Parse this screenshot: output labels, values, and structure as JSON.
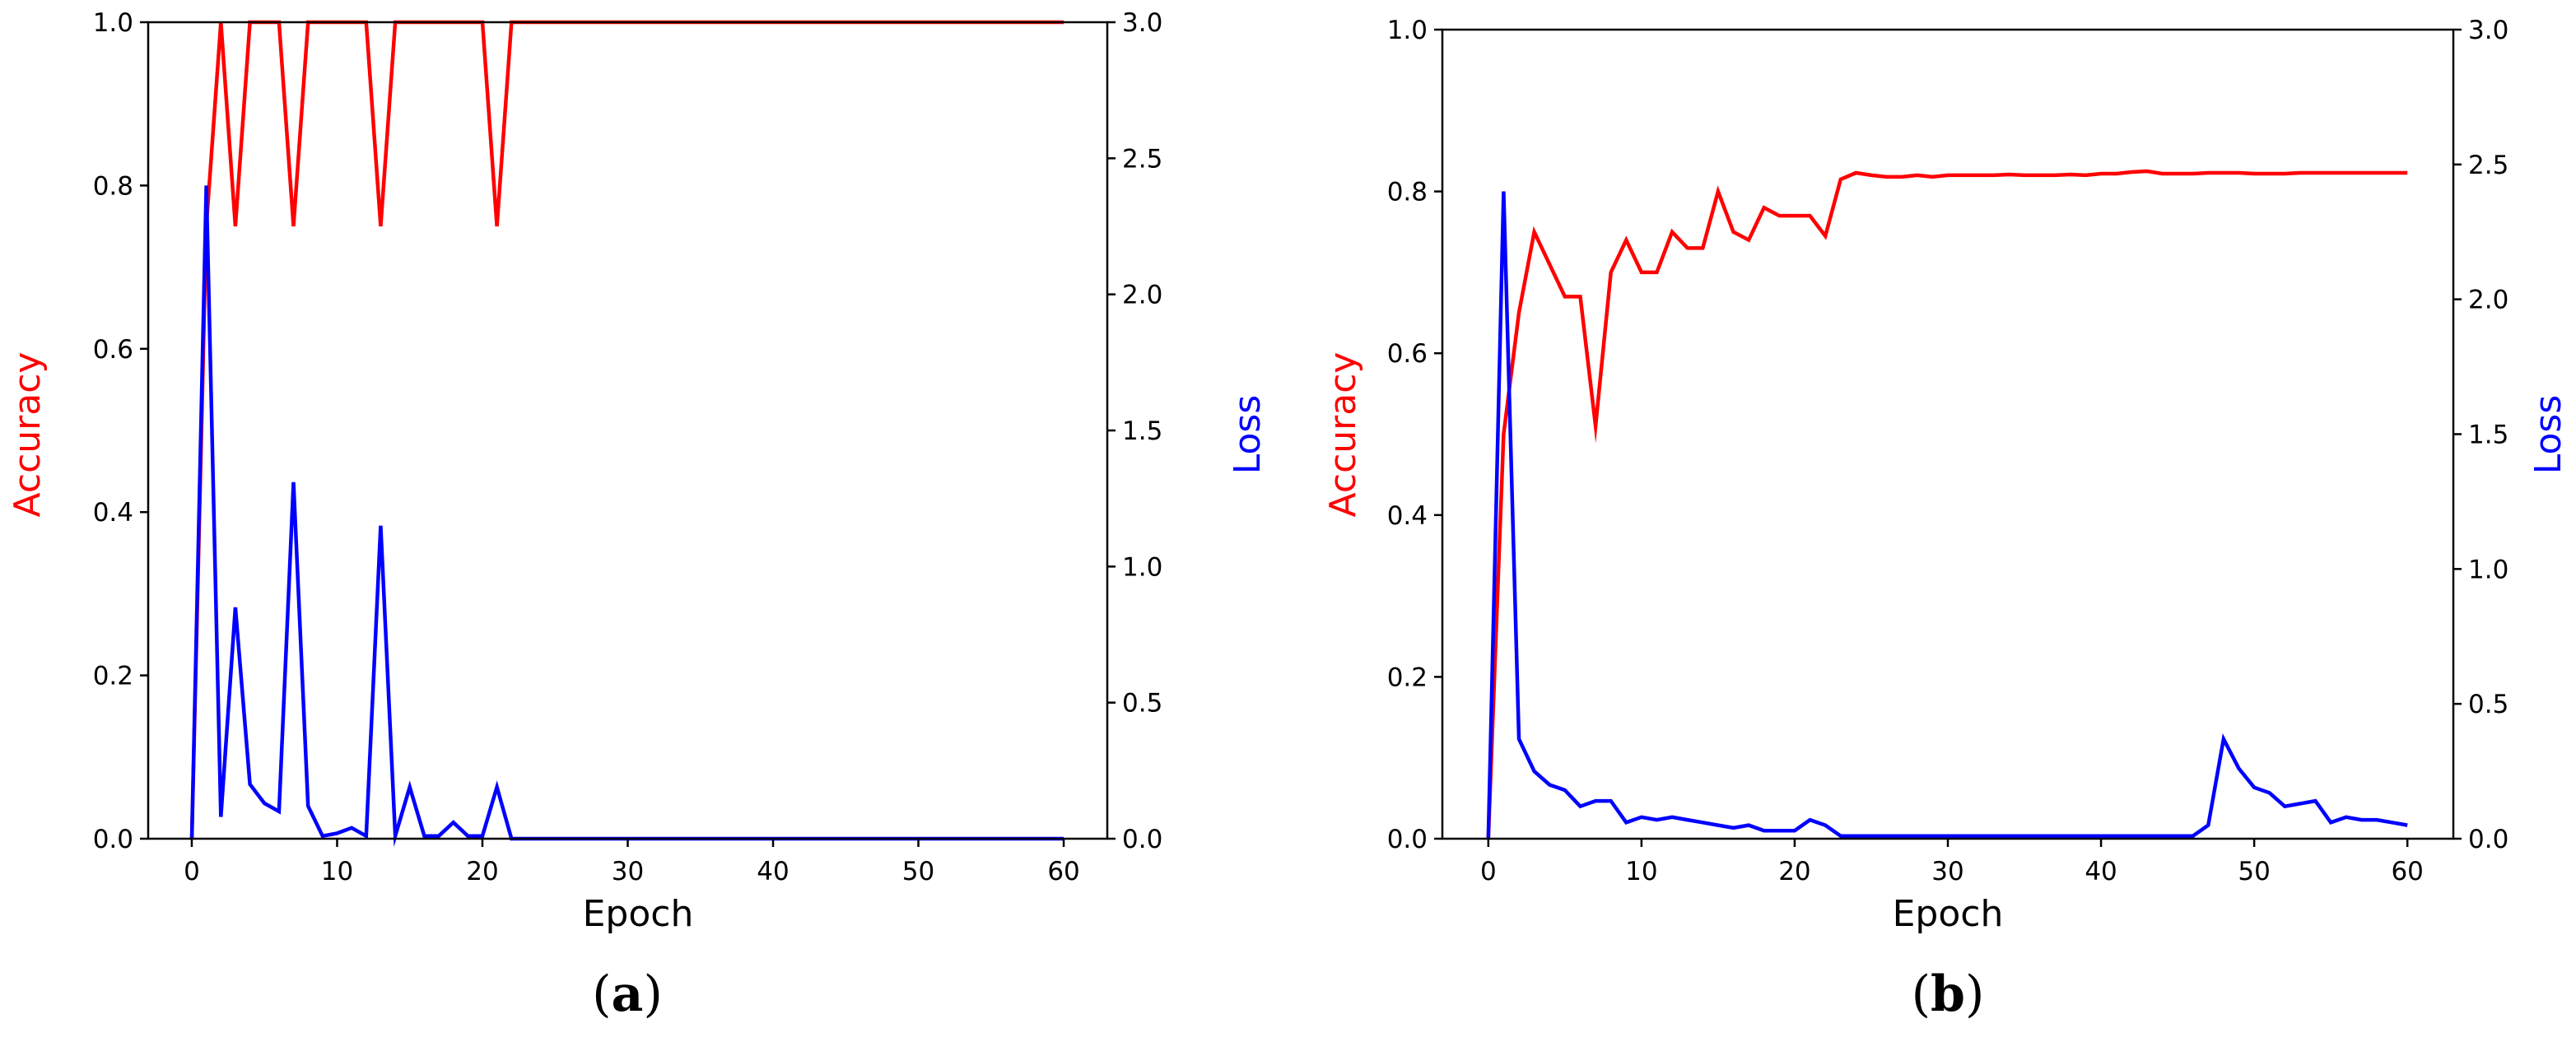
{
  "colors": {
    "accuracy": "#ff0000",
    "loss": "#0000ff",
    "axis": "#000000"
  },
  "chart_data": [
    {
      "panel_label": "a",
      "type": "line",
      "xlabel": "Epoch",
      "ylabel_left": "Accuracy",
      "ylabel_right": "Loss",
      "xlim": [
        -3,
        63
      ],
      "ylim_left": [
        0,
        1
      ],
      "ylim_right": [
        0,
        3
      ],
      "xticks": [
        "0",
        "10",
        "20",
        "30",
        "40",
        "50",
        "60"
      ],
      "yticks_left": [
        "0.0",
        "0.2",
        "0.4",
        "0.6",
        "0.8",
        "1.0"
      ],
      "yticks_right": [
        "0.0",
        "0.5",
        "1.0",
        "1.5",
        "2.0",
        "2.5",
        "3.0"
      ],
      "grid": false,
      "series": [
        {
          "name": "Accuracy",
          "axis": "left",
          "color": "#ff0000",
          "x": [
            0,
            1,
            2,
            3,
            4,
            5,
            6,
            7,
            8,
            9,
            10,
            11,
            12,
            13,
            14,
            15,
            16,
            17,
            18,
            19,
            20,
            21,
            22,
            23,
            24,
            25,
            26,
            27,
            28,
            29,
            30,
            31,
            32,
            33,
            34,
            35,
            36,
            37,
            38,
            39,
            40,
            41,
            42,
            43,
            44,
            45,
            46,
            47,
            48,
            49,
            50,
            51,
            52,
            53,
            54,
            55,
            56,
            57,
            58,
            59,
            60
          ],
          "y": [
            0.0,
            0.75,
            1.0,
            0.75,
            1.0,
            1.0,
            1.0,
            0.75,
            1.0,
            1.0,
            1.0,
            1.0,
            1.0,
            0.75,
            1.0,
            1.0,
            1.0,
            1.0,
            1.0,
            1.0,
            1.0,
            0.75,
            1.0,
            1.0,
            1.0,
            1.0,
            1.0,
            1.0,
            1.0,
            1.0,
            1.0,
            1.0,
            1.0,
            1.0,
            1.0,
            1.0,
            1.0,
            1.0,
            1.0,
            1.0,
            1.0,
            1.0,
            1.0,
            1.0,
            1.0,
            1.0,
            1.0,
            1.0,
            1.0,
            1.0,
            1.0,
            1.0,
            1.0,
            1.0,
            1.0,
            1.0,
            1.0,
            1.0,
            1.0,
            1.0,
            1.0
          ]
        },
        {
          "name": "Loss",
          "axis": "right",
          "color": "#0000ff",
          "x": [
            0,
            1,
            2,
            3,
            4,
            5,
            6,
            7,
            8,
            9,
            10,
            11,
            12,
            13,
            14,
            15,
            16,
            17,
            18,
            19,
            20,
            21,
            22,
            23,
            24,
            25,
            26,
            27,
            28,
            29,
            30,
            31,
            32,
            33,
            34,
            35,
            36,
            37,
            38,
            39,
            40,
            41,
            42,
            43,
            44,
            45,
            46,
            47,
            48,
            49,
            50,
            51,
            52,
            53,
            54,
            55,
            56,
            57,
            58,
            59,
            60
          ],
          "y": [
            0.0,
            2.4,
            0.08,
            0.85,
            0.2,
            0.13,
            0.1,
            1.31,
            0.12,
            0.01,
            0.02,
            0.04,
            0.01,
            1.15,
            0.01,
            0.19,
            0.01,
            0.01,
            0.06,
            0.01,
            0.01,
            0.19,
            0.0,
            0.0,
            0.0,
            0.0,
            0.0,
            0.0,
            0.0,
            0.0,
            0.0,
            0.0,
            0.0,
            0.0,
            0.0,
            0.0,
            0.0,
            0.0,
            0.0,
            0.0,
            0.0,
            0.0,
            0.0,
            0.0,
            0.0,
            0.0,
            0.0,
            0.0,
            0.0,
            0.0,
            0.0,
            0.0,
            0.0,
            0.0,
            0.0,
            0.0,
            0.0,
            0.0,
            0.0,
            0.0,
            0.0
          ]
        }
      ]
    },
    {
      "panel_label": "b",
      "type": "line",
      "xlabel": "Epoch",
      "ylabel_left": "Accuracy",
      "ylabel_right": "Loss",
      "xlim": [
        -3,
        63
      ],
      "ylim_left": [
        0,
        1
      ],
      "ylim_right": [
        0,
        3
      ],
      "xticks": [
        "0",
        "10",
        "20",
        "30",
        "40",
        "50",
        "60"
      ],
      "yticks_left": [
        "0.0",
        "0.2",
        "0.4",
        "0.6",
        "0.8",
        "1.0"
      ],
      "yticks_right": [
        "0.0",
        "0.5",
        "1.0",
        "1.5",
        "2.0",
        "2.5",
        "3.0"
      ],
      "grid": false,
      "series": [
        {
          "name": "Accuracy",
          "axis": "left",
          "color": "#ff0000",
          "x": [
            0,
            1,
            2,
            3,
            4,
            5,
            6,
            7,
            8,
            9,
            10,
            11,
            12,
            13,
            14,
            15,
            16,
            17,
            18,
            19,
            20,
            21,
            22,
            23,
            24,
            25,
            26,
            27,
            28,
            29,
            30,
            31,
            32,
            33,
            34,
            35,
            36,
            37,
            38,
            39,
            40,
            41,
            42,
            43,
            44,
            45,
            46,
            47,
            48,
            49,
            50,
            51,
            52,
            53,
            54,
            55,
            56,
            57,
            58,
            59,
            60
          ],
          "y": [
            0.0,
            0.5,
            0.65,
            0.75,
            0.71,
            0.67,
            0.67,
            0.51,
            0.7,
            0.74,
            0.7,
            0.7,
            0.75,
            0.73,
            0.73,
            0.8,
            0.75,
            0.74,
            0.78,
            0.77,
            0.77,
            0.77,
            0.745,
            0.815,
            0.823,
            0.82,
            0.818,
            0.818,
            0.82,
            0.818,
            0.82,
            0.82,
            0.82,
            0.82,
            0.821,
            0.82,
            0.82,
            0.82,
            0.821,
            0.82,
            0.822,
            0.822,
            0.824,
            0.825,
            0.822,
            0.822,
            0.822,
            0.823,
            0.823,
            0.823,
            0.822,
            0.822,
            0.822,
            0.823,
            0.823,
            0.823,
            0.823,
            0.823,
            0.823,
            0.823,
            0.823
          ]
        },
        {
          "name": "Loss",
          "axis": "right",
          "color": "#0000ff",
          "x": [
            0,
            1,
            2,
            3,
            4,
            5,
            6,
            7,
            8,
            9,
            10,
            11,
            12,
            13,
            14,
            15,
            16,
            17,
            18,
            19,
            20,
            21,
            22,
            23,
            24,
            25,
            26,
            27,
            28,
            29,
            30,
            31,
            32,
            33,
            34,
            35,
            36,
            37,
            38,
            39,
            40,
            41,
            42,
            43,
            44,
            45,
            46,
            47,
            48,
            49,
            50,
            51,
            52,
            53,
            54,
            55,
            56,
            57,
            58,
            59,
            60
          ],
          "y": [
            0.0,
            2.4,
            0.37,
            0.25,
            0.2,
            0.18,
            0.12,
            0.14,
            0.14,
            0.06,
            0.08,
            0.07,
            0.08,
            0.07,
            0.06,
            0.05,
            0.04,
            0.05,
            0.03,
            0.03,
            0.03,
            0.07,
            0.05,
            0.01,
            0.01,
            0.01,
            0.01,
            0.01,
            0.01,
            0.01,
            0.01,
            0.01,
            0.01,
            0.01,
            0.01,
            0.01,
            0.01,
            0.01,
            0.01,
            0.01,
            0.01,
            0.01,
            0.01,
            0.01,
            0.01,
            0.01,
            0.01,
            0.05,
            0.37,
            0.26,
            0.19,
            0.17,
            0.12,
            0.13,
            0.14,
            0.06,
            0.08,
            0.07,
            0.07,
            0.06,
            0.05
          ]
        }
      ]
    }
  ]
}
